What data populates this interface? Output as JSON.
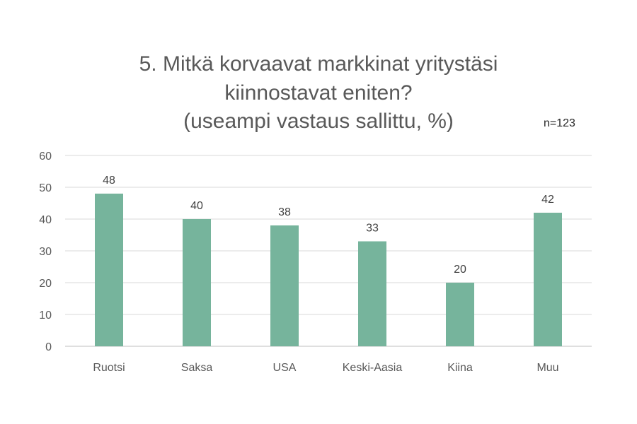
{
  "title_lines": [
    "5. Mitkä korvaavat markkinat yritystäsi",
    "kiinnostavat eniten?",
    "(useampi vastaus sallittu, %)"
  ],
  "note": "n=123",
  "colors": {
    "bar": "#76b49c",
    "grid": "#d9d9d9",
    "axis": "#bfbfbf"
  },
  "chart_data": {
    "type": "bar",
    "title": "5. Mitkä korvaavat markkinat yritystäsi kiinnostavat eniten? (useampi vastaus sallittu, %)",
    "categories": [
      "Ruotsi",
      "Saksa",
      "USA",
      "Keski-Aasia",
      "Kiina",
      "Muu"
    ],
    "values": [
      48,
      40,
      38,
      33,
      20,
      42
    ],
    "ylim": [
      0,
      60
    ],
    "yticks": [
      0,
      10,
      20,
      30,
      40,
      50,
      60
    ],
    "grid": true,
    "data_labels": true
  }
}
